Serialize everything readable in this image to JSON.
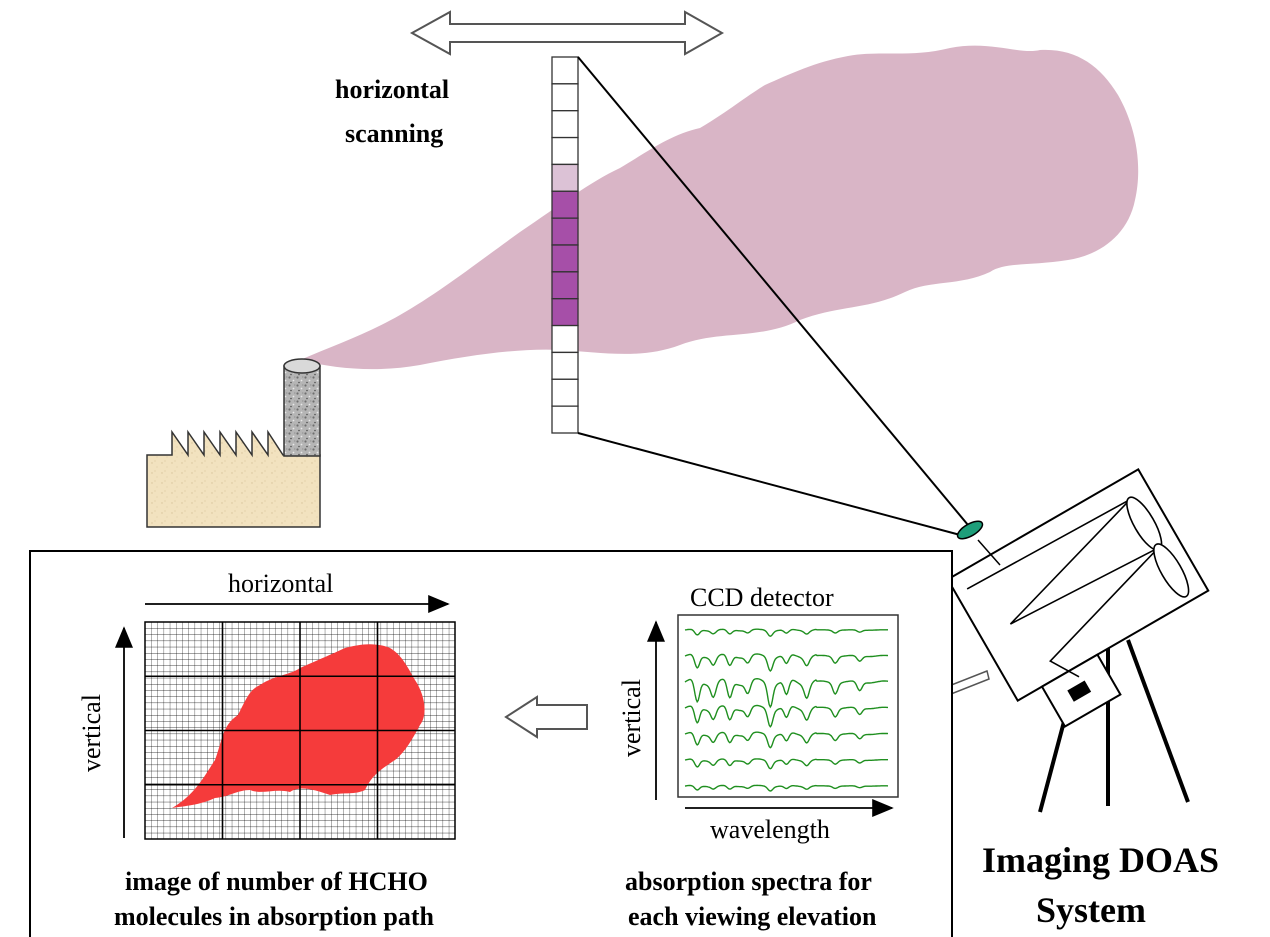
{
  "labels": {
    "scan_line1": "horizontal",
    "scan_line2": "scanning",
    "grid_horizontal": "horizontal",
    "grid_vertical": "vertical",
    "ccd_title": "CCD detector",
    "ccd_vertical": "vertical",
    "ccd_wavelength": "wavelength",
    "image_caption_line1": "image of number of HCHO",
    "image_caption_line2": "molecules in absorption path",
    "spectra_caption_line1": "absorption spectra for",
    "spectra_caption_line2": "each viewing elevation",
    "system_title_line1": "Imaging DOAS",
    "system_title_line2": "System"
  },
  "colors": {
    "plume": "#d9b5c6",
    "highlight_cells": "#a64fa8",
    "highlight_cells_light": "#dcc2d6",
    "hcho_image": "#f53b3b",
    "spectra": "#1f8f1f",
    "lens": "#1e9e7a",
    "factory_wall": "#f2e2bf",
    "chimney": "#a9a9a9"
  },
  "scan_column": {
    "cell_count": 14,
    "highlighted_cells": [
      5,
      6,
      7,
      8,
      9
    ]
  },
  "ccd_spectra_rows": 7
}
